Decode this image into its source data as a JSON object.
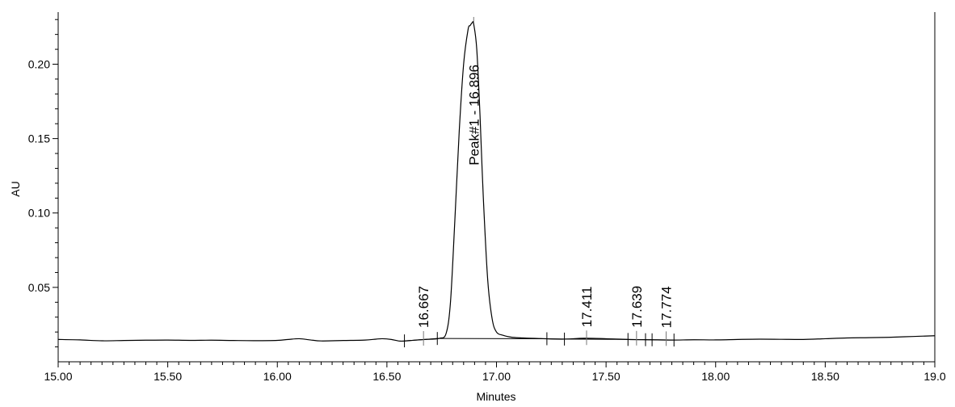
{
  "chart_data": {
    "type": "line",
    "xlabel": "Minutes",
    "ylabel": "AU",
    "xlim": [
      15.0,
      19.0
    ],
    "ylim": [
      0.0,
      0.235
    ],
    "grid": false,
    "x_ticks": [
      {
        "value": 15.0,
        "label": "15.00"
      },
      {
        "value": 15.5,
        "label": "15.50"
      },
      {
        "value": 16.0,
        "label": "16.00"
      },
      {
        "value": 16.5,
        "label": "16.50"
      },
      {
        "value": 17.0,
        "label": "17.00"
      },
      {
        "value": 17.5,
        "label": "17.50"
      },
      {
        "value": 18.0,
        "label": "18.00"
      },
      {
        "value": 18.5,
        "label": "18.50"
      },
      {
        "value": 19.0,
        "label": "19.0"
      }
    ],
    "y_ticks": [
      {
        "value": 0.05,
        "label": "0.05"
      },
      {
        "value": 0.1,
        "label": "0.10"
      },
      {
        "value": 0.15,
        "label": "0.15"
      },
      {
        "value": 0.2,
        "label": "0.20"
      }
    ],
    "series": [
      {
        "x": [
          15.0,
          15.1,
          15.2,
          15.3,
          15.4,
          15.5,
          15.6,
          15.7,
          15.8,
          15.9,
          16.0,
          16.05,
          16.1,
          16.15,
          16.2,
          16.3,
          16.4,
          16.45,
          16.48,
          16.52,
          16.56,
          16.6,
          16.65,
          16.7,
          16.74,
          16.77,
          16.79,
          16.81,
          16.83,
          16.85,
          16.87,
          16.88,
          16.89,
          16.896,
          16.91,
          16.925,
          16.94,
          16.96,
          16.98,
          17.0,
          17.03,
          17.07,
          17.12,
          17.2,
          17.3,
          17.4,
          17.5,
          17.6,
          17.7,
          17.8,
          17.9,
          18.0,
          18.1,
          18.2,
          18.3,
          18.4,
          18.5,
          18.6,
          18.7,
          18.8,
          18.9,
          19.0
        ],
        "y": [
          0.015,
          0.0147,
          0.0141,
          0.0143,
          0.0145,
          0.0146,
          0.0144,
          0.0145,
          0.0143,
          0.0142,
          0.0144,
          0.015,
          0.0155,
          0.0147,
          0.014,
          0.0143,
          0.0146,
          0.0152,
          0.0155,
          0.015,
          0.0139,
          0.0142,
          0.0148,
          0.0152,
          0.0158,
          0.019,
          0.04,
          0.095,
          0.155,
          0.2,
          0.223,
          0.226,
          0.228,
          0.227,
          0.21,
          0.165,
          0.11,
          0.055,
          0.029,
          0.02,
          0.0178,
          0.0165,
          0.016,
          0.0156,
          0.0152,
          0.0158,
          0.0155,
          0.015,
          0.0148,
          0.0146,
          0.0148,
          0.0147,
          0.015,
          0.0152,
          0.0151,
          0.015,
          0.0155,
          0.016,
          0.0162,
          0.0165,
          0.017,
          0.0175
        ]
      }
    ],
    "baseline_segments": [
      [
        16.58,
        16.66
      ],
      [
        16.66,
        16.73
      ],
      [
        16.73,
        17.23
      ],
      [
        17.23,
        17.31
      ],
      [
        17.31,
        17.6
      ],
      [
        17.6,
        17.68
      ],
      [
        17.68,
        17.81
      ]
    ],
    "integration_marks": [
      16.58,
      16.73,
      17.23,
      17.31,
      17.6,
      17.68,
      17.71,
      17.81
    ],
    "peaks": [
      {
        "rt": 16.667,
        "height": 0.0152,
        "label": "16.667"
      },
      {
        "rt": 16.896,
        "height": 0.2285,
        "label": "Peak#1 - 16.896"
      },
      {
        "rt": 17.411,
        "height": 0.0156,
        "label": "17.411"
      },
      {
        "rt": 17.639,
        "height": 0.0153,
        "label": "17.639"
      },
      {
        "rt": 17.774,
        "height": 0.015,
        "label": "17.774"
      }
    ]
  }
}
